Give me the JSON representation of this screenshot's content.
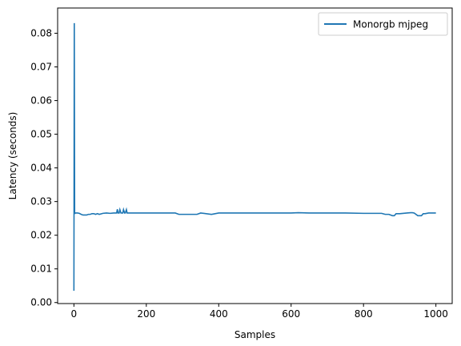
{
  "chart_data": {
    "type": "line",
    "xlabel": "Samples",
    "ylabel": "Latency (seconds)",
    "xlim": [
      -45,
      1045
    ],
    "ylim": [
      -0.0003,
      0.0875
    ],
    "xticks": [
      0,
      200,
      400,
      600,
      800,
      1000
    ],
    "yticks": [
      0.0,
      0.01,
      0.02,
      0.03,
      0.04,
      0.05,
      0.06,
      0.07,
      0.08
    ],
    "xtick_labels": [
      "0",
      "200",
      "400",
      "600",
      "800",
      "1000"
    ],
    "ytick_labels": [
      "0.00",
      "0.01",
      "0.02",
      "0.03",
      "0.04",
      "0.05",
      "0.06",
      "0.07",
      "0.08"
    ],
    "grid": false,
    "legend": "upper-right",
    "line_color": "#1f77b4",
    "series": [
      {
        "name": "Monorgb mjpeg",
        "x": [
          0,
          1,
          2,
          3,
          5,
          10,
          15,
          20,
          25,
          30,
          35,
          40,
          45,
          50,
          55,
          60,
          65,
          70,
          80,
          90,
          100,
          110,
          118,
          120,
          122,
          125,
          127,
          130,
          132,
          135,
          137,
          140,
          142,
          145,
          147,
          150,
          160,
          200,
          250,
          280,
          290,
          300,
          320,
          340,
          350,
          380,
          400,
          430,
          450,
          500,
          550,
          600,
          620,
          650,
          700,
          750,
          800,
          850,
          860,
          870,
          880,
          885,
          890,
          900,
          920,
          930,
          935,
          940,
          950,
          960,
          965,
          970,
          980,
          990,
          1000
        ],
        "y": [
          0.0035,
          0.083,
          0.0268,
          0.0265,
          0.0266,
          0.0266,
          0.0265,
          0.0262,
          0.026,
          0.026,
          0.026,
          0.0262,
          0.0262,
          0.0264,
          0.0264,
          0.0262,
          0.0264,
          0.0262,
          0.0265,
          0.0266,
          0.0265,
          0.0266,
          0.0266,
          0.0277,
          0.0266,
          0.0266,
          0.0276,
          0.0266,
          0.0266,
          0.0266,
          0.0276,
          0.0266,
          0.0266,
          0.0276,
          0.0266,
          0.0266,
          0.0266,
          0.0266,
          0.0266,
          0.0266,
          0.0262,
          0.0262,
          0.0262,
          0.0262,
          0.0266,
          0.0262,
          0.0266,
          0.0266,
          0.0266,
          0.0266,
          0.0266,
          0.0266,
          0.0267,
          0.0266,
          0.0266,
          0.0266,
          0.0265,
          0.0265,
          0.0262,
          0.0262,
          0.0258,
          0.0258,
          0.0264,
          0.0264,
          0.0266,
          0.0267,
          0.0267,
          0.0266,
          0.0258,
          0.0258,
          0.0264,
          0.0264,
          0.0266,
          0.0266,
          0.0266
        ]
      }
    ]
  }
}
